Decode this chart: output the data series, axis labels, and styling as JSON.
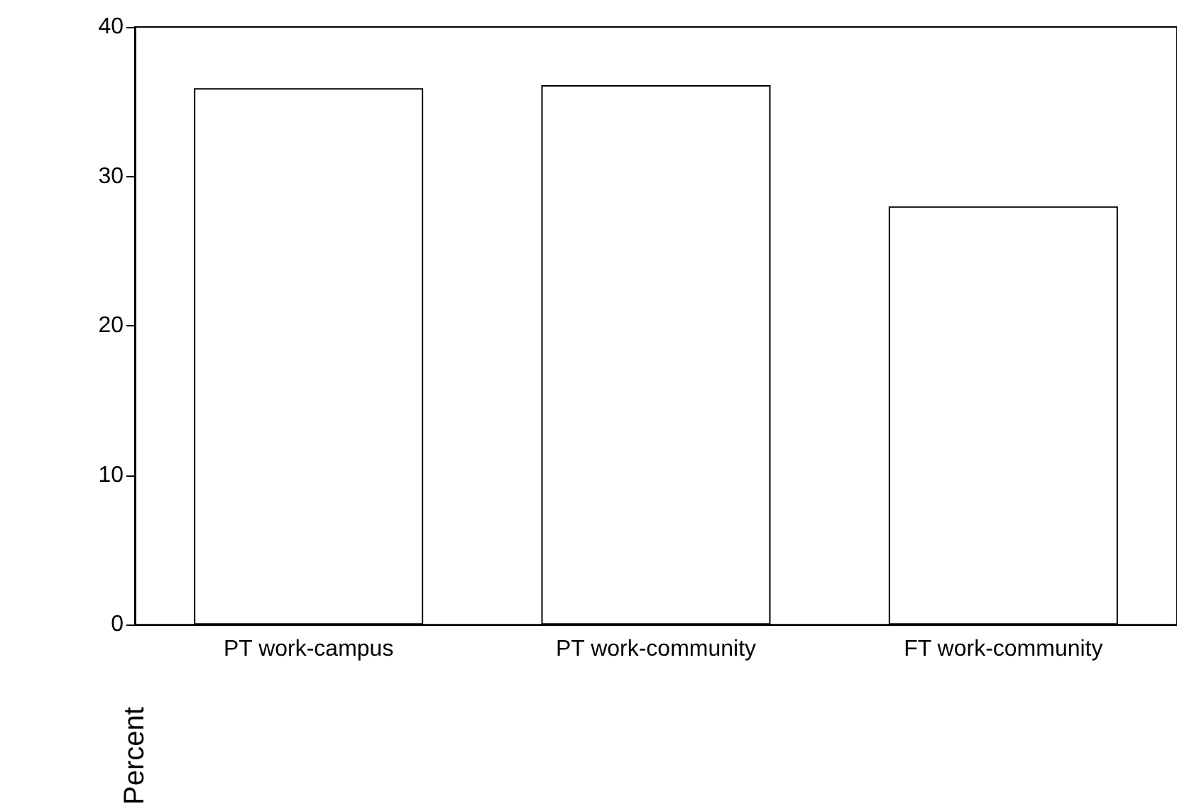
{
  "chart_data": {
    "type": "bar",
    "ylabel": "Percent",
    "categories": [
      "PT work-campus",
      "PT work-community",
      "FT work-community"
    ],
    "values": [
      35.9,
      36.1,
      28.0
    ],
    "color": "#ffffff",
    "ylim": [
      0,
      40
    ],
    "yticks": [
      0,
      10,
      20,
      30,
      40
    ],
    "grid": false
  }
}
